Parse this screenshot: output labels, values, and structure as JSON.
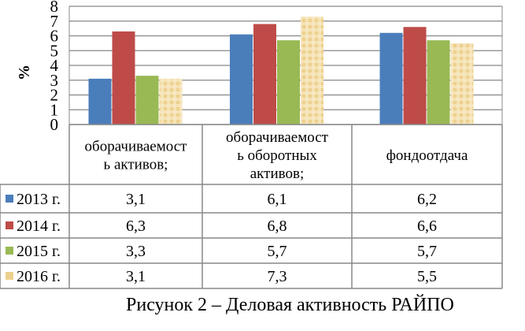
{
  "chart_data": {
    "type": "bar",
    "title": "",
    "ylabel": "%",
    "xlabel": "",
    "ylim": [
      0,
      8
    ],
    "yticks": [
      "0",
      "1",
      "2",
      "3",
      "4",
      "5",
      "6",
      "7",
      "8"
    ],
    "grid": true,
    "legend_placement": "data-table-left",
    "categories": [
      [
        "оборачиваемост",
        "ь активов;"
      ],
      [
        "оборачиваемост",
        "ь оборотных",
        "активов;"
      ],
      [
        "фондоотдача"
      ]
    ],
    "series": [
      {
        "name": "2013 г.",
        "color": "#4a7ebb",
        "values": [
          3.1,
          6.1,
          6.2
        ],
        "labels": [
          "3,1",
          "6,1",
          "6,2"
        ]
      },
      {
        "name": "2014 г.",
        "color": "#be4b48",
        "values": [
          6.3,
          6.8,
          6.6
        ],
        "labels": [
          "6,3",
          "6,8",
          "6,6"
        ]
      },
      {
        "name": "2015 г.",
        "color": "#98b954",
        "values": [
          3.3,
          5.7,
          5.7
        ],
        "labels": [
          "3,3",
          "5,7",
          "5,7"
        ]
      },
      {
        "name": "2016 г.",
        "color": "#f2d9a0",
        "values": [
          3.1,
          7.3,
          5.5
        ],
        "labels": [
          "3,1",
          "7,3",
          "5,5"
        ]
      }
    ]
  },
  "caption": "Рисунок 2 – Деловая активность РАЙПО"
}
